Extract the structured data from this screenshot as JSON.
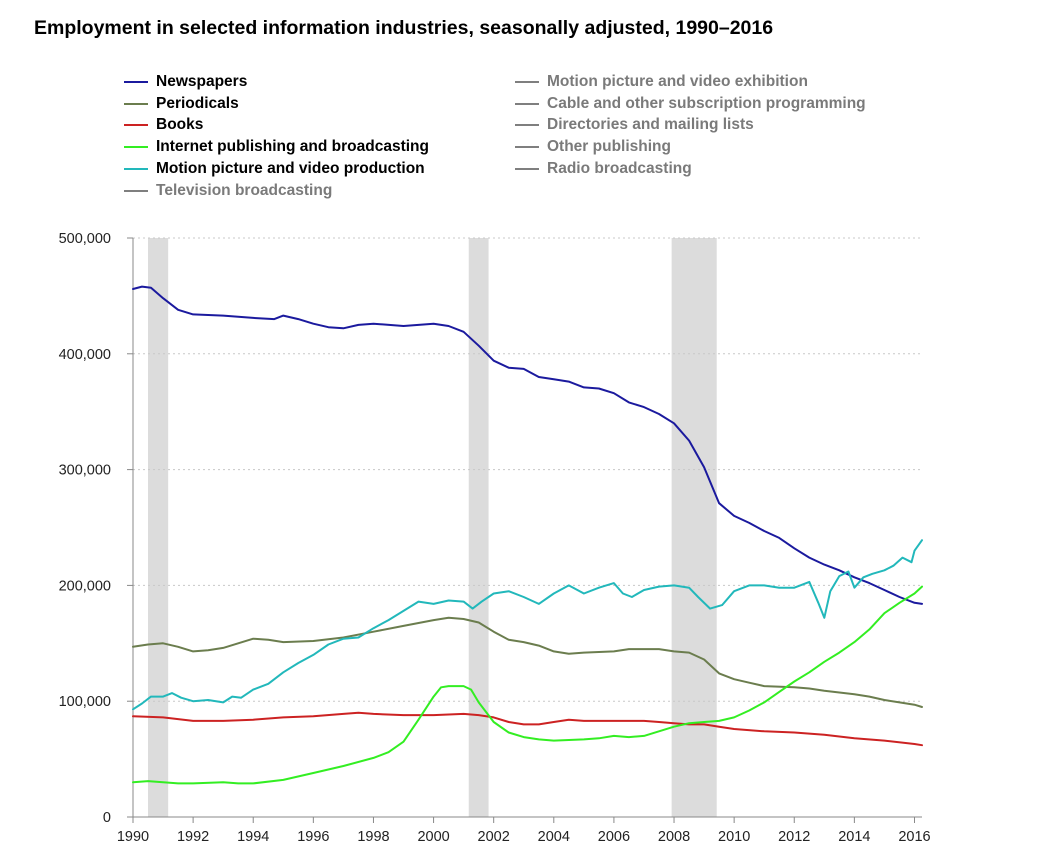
{
  "chart_data": {
    "type": "line",
    "title": "Employment in selected information industries, seasonally adjusted, 1990–2016",
    "xlabel": "",
    "ylabel": "",
    "xlim": [
      1990,
      2016.25
    ],
    "ylim": [
      0,
      500000
    ],
    "y_ticks": [
      0,
      100000,
      200000,
      300000,
      400000,
      500000
    ],
    "y_tick_labels": [
      "0",
      "100,000",
      "200,000",
      "300,000",
      "400,000",
      "500,000"
    ],
    "x_ticks": [
      1990,
      1992,
      1994,
      1996,
      1998,
      2000,
      2002,
      2004,
      2006,
      2008,
      2010,
      2012,
      2014,
      2016
    ],
    "x_tick_labels": [
      "1990",
      "1992",
      "1994",
      "1996",
      "1998",
      "2000",
      "2002",
      "2004",
      "2006",
      "2008",
      "2010",
      "2012",
      "2014",
      "2016"
    ],
    "grid": "horizontal dotted",
    "legend_placement": "top, two columns",
    "recessions": [
      [
        1990.5,
        1991.17
      ],
      [
        2001.17,
        2001.83
      ],
      [
        2007.92,
        2009.42
      ]
    ],
    "recession_color": "#dcdcdc",
    "series": [
      {
        "name": "Newspapers",
        "color": "#1b1a9e",
        "points": [
          [
            1990,
            456000
          ],
          [
            1990.3,
            458000
          ],
          [
            1990.6,
            457000
          ],
          [
            1991.0,
            448000
          ],
          [
            1991.5,
            438000
          ],
          [
            1992.0,
            434000
          ],
          [
            1993.0,
            433000
          ],
          [
            1994.0,
            431000
          ],
          [
            1994.7,
            430000
          ],
          [
            1995.0,
            433000
          ],
          [
            1995.5,
            430000
          ],
          [
            1996.0,
            426000
          ],
          [
            1996.5,
            423000
          ],
          [
            1997.0,
            422000
          ],
          [
            1997.5,
            425000
          ],
          [
            1998.0,
            426000
          ],
          [
            1999.0,
            424000
          ],
          [
            2000.0,
            426000
          ],
          [
            2000.5,
            424000
          ],
          [
            2001.0,
            419000
          ],
          [
            2001.5,
            407000
          ],
          [
            2002.0,
            394000
          ],
          [
            2002.5,
            388000
          ],
          [
            2003.0,
            387000
          ],
          [
            2003.5,
            380000
          ],
          [
            2004.0,
            378000
          ],
          [
            2004.5,
            376000
          ],
          [
            2005.0,
            371000
          ],
          [
            2005.5,
            370000
          ],
          [
            2006.0,
            366000
          ],
          [
            2006.5,
            358000
          ],
          [
            2007.0,
            354000
          ],
          [
            2007.5,
            348000
          ],
          [
            2008.0,
            340000
          ],
          [
            2008.5,
            325000
          ],
          [
            2009.0,
            302000
          ],
          [
            2009.5,
            271000
          ],
          [
            2010.0,
            260000
          ],
          [
            2010.5,
            254000
          ],
          [
            2011.0,
            247000
          ],
          [
            2011.5,
            241000
          ],
          [
            2012.0,
            232000
          ],
          [
            2012.5,
            224000
          ],
          [
            2013.0,
            218000
          ],
          [
            2013.5,
            213000
          ],
          [
            2014.0,
            207000
          ],
          [
            2014.5,
            202000
          ],
          [
            2015.0,
            196000
          ],
          [
            2015.5,
            190000
          ],
          [
            2016.0,
            185000
          ],
          [
            2016.25,
            184000
          ]
        ]
      },
      {
        "name": "Periodicals",
        "color": "#6b7d4e",
        "points": [
          [
            1990,
            147000
          ],
          [
            1990.5,
            149000
          ],
          [
            1991.0,
            150000
          ],
          [
            1991.5,
            147000
          ],
          [
            1992.0,
            143000
          ],
          [
            1992.5,
            144000
          ],
          [
            1993.0,
            146000
          ],
          [
            1993.5,
            150000
          ],
          [
            1994.0,
            154000
          ],
          [
            1994.5,
            153000
          ],
          [
            1995.0,
            151000
          ],
          [
            1996.0,
            152000
          ],
          [
            1997.0,
            155000
          ],
          [
            1998.0,
            160000
          ],
          [
            1999.0,
            165000
          ],
          [
            2000.0,
            170000
          ],
          [
            2000.5,
            172000
          ],
          [
            2001.0,
            171000
          ],
          [
            2001.5,
            168000
          ],
          [
            2002.0,
            160000
          ],
          [
            2002.5,
            153000
          ],
          [
            2003.0,
            151000
          ],
          [
            2003.5,
            148000
          ],
          [
            2004.0,
            143000
          ],
          [
            2004.5,
            141000
          ],
          [
            2005.0,
            142000
          ],
          [
            2006.0,
            143000
          ],
          [
            2006.5,
            145000
          ],
          [
            2007.0,
            145000
          ],
          [
            2007.5,
            145000
          ],
          [
            2008.0,
            143000
          ],
          [
            2008.5,
            142000
          ],
          [
            2009.0,
            136000
          ],
          [
            2009.5,
            124000
          ],
          [
            2010.0,
            119000
          ],
          [
            2010.5,
            116000
          ],
          [
            2011.0,
            113000
          ],
          [
            2012.0,
            112000
          ],
          [
            2012.5,
            111000
          ],
          [
            2013.0,
            109000
          ],
          [
            2014.0,
            106000
          ],
          [
            2014.5,
            104000
          ],
          [
            2015.0,
            101000
          ],
          [
            2015.5,
            99000
          ],
          [
            2016.0,
            97000
          ],
          [
            2016.25,
            95000
          ]
        ]
      },
      {
        "name": "Books",
        "color": "#cc2222",
        "points": [
          [
            1990,
            87000
          ],
          [
            1991.0,
            86000
          ],
          [
            1992.0,
            83000
          ],
          [
            1993.0,
            83000
          ],
          [
            1994.0,
            84000
          ],
          [
            1995.0,
            86000
          ],
          [
            1996.0,
            87000
          ],
          [
            1997.0,
            89000
          ],
          [
            1997.5,
            90000
          ],
          [
            1998.0,
            89000
          ],
          [
            1999.0,
            88000
          ],
          [
            2000.0,
            88000
          ],
          [
            2001.0,
            89000
          ],
          [
            2001.5,
            88000
          ],
          [
            2002.0,
            86000
          ],
          [
            2002.5,
            82000
          ],
          [
            2003.0,
            80000
          ],
          [
            2003.5,
            80000
          ],
          [
            2004.0,
            82000
          ],
          [
            2004.5,
            84000
          ],
          [
            2005.0,
            83000
          ],
          [
            2006.0,
            83000
          ],
          [
            2007.0,
            83000
          ],
          [
            2007.5,
            82000
          ],
          [
            2008.0,
            81000
          ],
          [
            2008.5,
            80000
          ],
          [
            2009.0,
            80000
          ],
          [
            2009.5,
            78000
          ],
          [
            2010.0,
            76000
          ],
          [
            2011.0,
            74000
          ],
          [
            2012.0,
            73000
          ],
          [
            2013.0,
            71000
          ],
          [
            2014.0,
            68000
          ],
          [
            2015.0,
            66000
          ],
          [
            2016.0,
            63000
          ],
          [
            2016.25,
            62000
          ]
        ]
      },
      {
        "name": "Internet publishing and broadcasting",
        "color": "#33ee22",
        "points": [
          [
            1990,
            30000
          ],
          [
            1990.5,
            31000
          ],
          [
            1991.0,
            30000
          ],
          [
            1991.5,
            29000
          ],
          [
            1992.0,
            29000
          ],
          [
            1993.0,
            30000
          ],
          [
            1993.5,
            29000
          ],
          [
            1994.0,
            29000
          ],
          [
            1995.0,
            32000
          ],
          [
            1996.0,
            38000
          ],
          [
            1997.0,
            44000
          ],
          [
            1998.0,
            51000
          ],
          [
            1998.5,
            56000
          ],
          [
            1999.0,
            65000
          ],
          [
            1999.5,
            84000
          ],
          [
            2000.0,
            104000
          ],
          [
            2000.25,
            112000
          ],
          [
            2000.5,
            113000
          ],
          [
            2001.0,
            113000
          ],
          [
            2001.25,
            110000
          ],
          [
            2001.5,
            99000
          ],
          [
            2002.0,
            82000
          ],
          [
            2002.5,
            73000
          ],
          [
            2003.0,
            69000
          ],
          [
            2003.5,
            67000
          ],
          [
            2004.0,
            66000
          ],
          [
            2005.0,
            67000
          ],
          [
            2005.5,
            68000
          ],
          [
            2006.0,
            70000
          ],
          [
            2006.5,
            69000
          ],
          [
            2007.0,
            70000
          ],
          [
            2007.5,
            74000
          ],
          [
            2008.0,
            78000
          ],
          [
            2008.5,
            81000
          ],
          [
            2009.0,
            82000
          ],
          [
            2009.5,
            83000
          ],
          [
            2010.0,
            86000
          ],
          [
            2010.5,
            92000
          ],
          [
            2011.0,
            99000
          ],
          [
            2011.5,
            108000
          ],
          [
            2012.0,
            117000
          ],
          [
            2012.5,
            125000
          ],
          [
            2013.0,
            134000
          ],
          [
            2013.5,
            142000
          ],
          [
            2014.0,
            151000
          ],
          [
            2014.5,
            162000
          ],
          [
            2015.0,
            176000
          ],
          [
            2015.5,
            185000
          ],
          [
            2016.0,
            193000
          ],
          [
            2016.25,
            199000
          ]
        ]
      },
      {
        "name": "Motion picture and video production",
        "color": "#22b8bb",
        "points": [
          [
            1990,
            93000
          ],
          [
            1990.3,
            98000
          ],
          [
            1990.6,
            104000
          ],
          [
            1991.0,
            104000
          ],
          [
            1991.3,
            107000
          ],
          [
            1991.6,
            103000
          ],
          [
            1992.0,
            100000
          ],
          [
            1992.5,
            101000
          ],
          [
            1993.0,
            99000
          ],
          [
            1993.3,
            104000
          ],
          [
            1993.6,
            103000
          ],
          [
            1994.0,
            110000
          ],
          [
            1994.5,
            115000
          ],
          [
            1995.0,
            125000
          ],
          [
            1995.5,
            133000
          ],
          [
            1996.0,
            140000
          ],
          [
            1996.5,
            149000
          ],
          [
            1997.0,
            154000
          ],
          [
            1997.5,
            155000
          ],
          [
            1998.0,
            163000
          ],
          [
            1998.5,
            170000
          ],
          [
            1999.0,
            178000
          ],
          [
            1999.5,
            186000
          ],
          [
            2000.0,
            184000
          ],
          [
            2000.5,
            187000
          ],
          [
            2001.0,
            186000
          ],
          [
            2001.3,
            180000
          ],
          [
            2001.6,
            186000
          ],
          [
            2002.0,
            193000
          ],
          [
            2002.5,
            195000
          ],
          [
            2003.0,
            190000
          ],
          [
            2003.5,
            184000
          ],
          [
            2004.0,
            193000
          ],
          [
            2004.5,
            200000
          ],
          [
            2005.0,
            193000
          ],
          [
            2005.5,
            198000
          ],
          [
            2006.0,
            202000
          ],
          [
            2006.3,
            193000
          ],
          [
            2006.6,
            190000
          ],
          [
            2007.0,
            196000
          ],
          [
            2007.5,
            199000
          ],
          [
            2008.0,
            200000
          ],
          [
            2008.5,
            198000
          ],
          [
            2008.8,
            190000
          ],
          [
            2009.2,
            180000
          ],
          [
            2009.6,
            183000
          ],
          [
            2010.0,
            195000
          ],
          [
            2010.5,
            200000
          ],
          [
            2011.0,
            200000
          ],
          [
            2011.5,
            198000
          ],
          [
            2012.0,
            198000
          ],
          [
            2012.5,
            203000
          ],
          [
            2012.8,
            185000
          ],
          [
            2013.0,
            172000
          ],
          [
            2013.2,
            195000
          ],
          [
            2013.5,
            208000
          ],
          [
            2013.8,
            212000
          ],
          [
            2014.0,
            198000
          ],
          [
            2014.3,
            207000
          ],
          [
            2014.6,
            210000
          ],
          [
            2015.0,
            213000
          ],
          [
            2015.3,
            217000
          ],
          [
            2015.6,
            224000
          ],
          [
            2015.9,
            220000
          ],
          [
            2016.0,
            230000
          ],
          [
            2016.25,
            239000
          ]
        ]
      },
      {
        "name": "Television broadcasting",
        "color": "#7f7f7f",
        "points": []
      },
      {
        "name": "Motion picture and video exhibition",
        "color": "#7f7f7f",
        "points": []
      },
      {
        "name": "Cable and other subscription programming",
        "color": "#7f7f7f",
        "points": []
      },
      {
        "name": "Directories and mailing lists",
        "color": "#7f7f7f",
        "points": []
      },
      {
        "name": "Other publishing",
        "color": "#7f7f7f",
        "points": []
      },
      {
        "name": "Radio broadcasting",
        "color": "#7f7f7f",
        "points": []
      }
    ]
  },
  "legend": {
    "column_1": [
      {
        "label": "Newspapers",
        "color": "#1b1a9e",
        "state": "active"
      },
      {
        "label": "Periodicals",
        "color": "#6b7d4e",
        "state": "active"
      },
      {
        "label": "Books",
        "color": "#cc2222",
        "state": "active"
      },
      {
        "label": "Internet publishing and broadcasting",
        "color": "#33ee22",
        "state": "active"
      },
      {
        "label": "Motion picture and video production",
        "color": "#22b8bb",
        "state": "active"
      },
      {
        "label": "Television broadcasting",
        "color": "#7f7f7f",
        "state": "dim"
      }
    ],
    "column_2": [
      {
        "label": "Motion picture and video exhibition",
        "color": "#7f7f7f",
        "state": "dim"
      },
      {
        "label": "Cable and other subscription programming",
        "color": "#7f7f7f",
        "state": "dim"
      },
      {
        "label": "Directories and mailing lists",
        "color": "#7f7f7f",
        "state": "dim"
      },
      {
        "label": "Other publishing",
        "color": "#7f7f7f",
        "state": "dim"
      },
      {
        "label": "Radio broadcasting",
        "color": "#7f7f7f",
        "state": "dim"
      }
    ]
  }
}
